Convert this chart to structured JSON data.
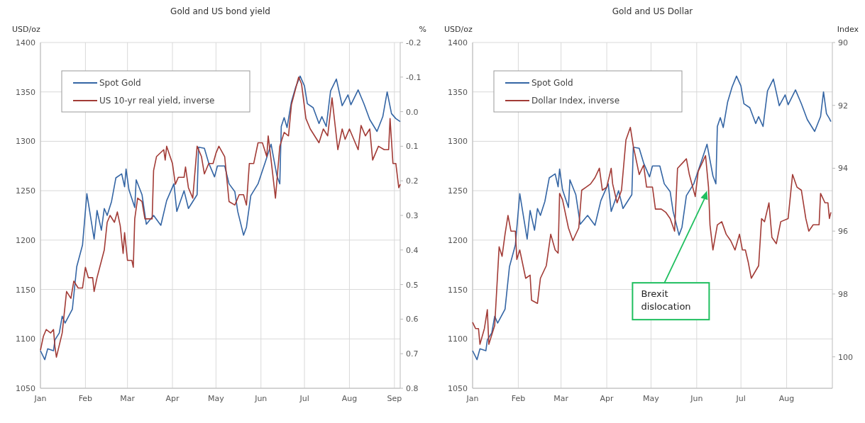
{
  "chart_data": [
    {
      "type": "line",
      "title": "Gold and US bond yield",
      "ylabel": "USD/oz",
      "y2label": "%",
      "legend": "top left",
      "grid": true,
      "xlim": [
        "--01-01",
        "--09-05"
      ],
      "xticks": [
        {
          "value": "--01-01",
          "label": "Jan"
        },
        {
          "value": "--02-01",
          "label": "Feb"
        },
        {
          "value": "--03-01",
          "label": "Mar"
        },
        {
          "value": "--04-01",
          "label": "Apr"
        },
        {
          "value": "--05-01",
          "label": "May"
        },
        {
          "value": "--06-01",
          "label": "Jun"
        },
        {
          "value": "--07-01",
          "label": "Jul"
        },
        {
          "value": "--08-01",
          "label": "Aug"
        },
        {
          "value": "--09-01",
          "label": "Sep"
        }
      ],
      "ylim": [
        1050,
        1400
      ],
      "yticks": [
        1050,
        1100,
        1150,
        1200,
        1250,
        1300,
        1350,
        1400
      ],
      "y2lim": [
        0.8,
        -0.2
      ],
      "y2ticks": [
        -0.2,
        -0.1,
        {
          "value": 0,
          "label": "0.0"
        },
        0.1,
        0.2,
        0.3,
        0.4,
        0.5,
        0.6,
        0.7,
        0.8
      ],
      "series": [
        {
          "name": "Spot Gold",
          "color": "#3465a4",
          "x": [
            "--01-01",
            "--01-04",
            "--01-06",
            "--01-10",
            "--01-11",
            "--01-14",
            "--01-16",
            "--01-18",
            "--01-23",
            "--01-26",
            "--01-30",
            "--02-02",
            "--02-07",
            "--02-09",
            "--02-12",
            "--02-14",
            "--02-16",
            "--02-19",
            "--02-22",
            "--02-26",
            "--02-28",
            "--02-29",
            "--03-02",
            "--03-06",
            "--03-07",
            "--03-11",
            "--03-14",
            "--03-19",
            "--03-24",
            "--03-28",
            "--04-02",
            "--04-04",
            "--04-09",
            "--04-12",
            "--04-18",
            "--04-19",
            "--04-23",
            "--04-26",
            "--04-30",
            "--05-02",
            "--05-07",
            "--05-10",
            "--05-14",
            "--05-16",
            "--05-20",
            "--05-22",
            "--05-25",
            "--05-30",
            "--06-04",
            "--06-08",
            "--06-12",
            "--06-14",
            "--06-15",
            "--06-17",
            "--06-19",
            "--06-22",
            "--06-25",
            "--06-28",
            "--07-01",
            "--07-03",
            "--07-07",
            "--07-11",
            "--07-13",
            "--07-16",
            "--07-19",
            "--07-23",
            "--07-27",
            "--07-31",
            "--08-02",
            "--08-07",
            "--08-11",
            "--08-15",
            "--08-20",
            "--08-24",
            "--08-27",
            "--08-30",
            "--09-02",
            "--09-05"
          ],
          "values": [
            1088,
            1079,
            1090,
            1088,
            1099,
            1106,
            1123,
            1116,
            1130,
            1173,
            1195,
            1247,
            1201,
            1230,
            1210,
            1232,
            1225,
            1239,
            1263,
            1267,
            1254,
            1272,
            1251,
            1233,
            1261,
            1246,
            1216,
            1225,
            1215,
            1240,
            1257,
            1229,
            1250,
            1232,
            1246,
            1294,
            1293,
            1278,
            1264,
            1275,
            1275,
            1257,
            1249,
            1229,
            1205,
            1213,
            1245,
            1257,
            1279,
            1297,
            1265,
            1257,
            1315,
            1324,
            1314,
            1340,
            1355,
            1366,
            1356,
            1338,
            1334,
            1318,
            1325,
            1315,
            1351,
            1363,
            1336,
            1347,
            1337,
            1352,
            1338,
            1322,
            1310,
            1325,
            1350,
            1328,
            1323,
            1320
          ]
        },
        {
          "name": "US 10-yr real yield, inverse",
          "color": "#a23b36",
          "axis": "y2",
          "x": [
            "--01-01",
            "--01-03",
            "--01-05",
            "--01-08",
            "--01-10",
            "--01-11",
            "--01-12",
            "--01-16",
            "--01-19",
            "--01-22",
            "--01-24",
            "--01-27",
            "--01-30",
            "--02-01",
            "--02-03",
            "--02-06",
            "--02-07",
            "--02-09",
            "--02-14",
            "--02-16",
            "--02-18",
            "--02-21",
            "--02-23",
            "--02-25",
            "--02-27",
            "--02-28",
            "--03-01",
            "--03-04",
            "--03-05",
            "--03-06",
            "--03-08",
            "--03-11",
            "--03-13",
            "--03-15",
            "--03-18",
            "--03-19",
            "--03-21",
            "--03-26",
            "--03-27",
            "--03-28",
            "--04-01",
            "--04-03",
            "--04-05",
            "--04-09",
            "--04-10",
            "--04-12",
            "--04-15",
            "--04-18",
            "--04-21",
            "--04-23",
            "--04-26",
            "--04-29",
            "--05-01",
            "--05-03",
            "--05-07",
            "--05-10",
            "--05-14",
            "--05-17",
            "--05-20",
            "--05-22",
            "--05-24",
            "--05-27",
            "--05-30",
            "--06-02",
            "--06-05",
            "--06-06",
            "--06-08",
            "--06-11",
            "--06-14",
            "--06-17",
            "--06-20",
            "--06-22",
            "--06-27",
            "--06-29",
            "--07-02",
            "--07-05",
            "--07-11",
            "--07-14",
            "--07-17",
            "--07-20",
            "--07-24",
            "--07-27",
            "--07-29",
            "--08-01",
            "--08-03",
            "--08-07",
            "--08-09",
            "--08-12",
            "--08-15",
            "--08-17",
            "--08-21",
            "--08-25",
            "--08-28",
            "--08-29",
            "--08-31",
            "--09-02",
            "--09-04",
            "--09-05"
          ],
          "values": [
            0.69,
            0.65,
            0.63,
            0.64,
            0.63,
            0.68,
            0.71,
            0.64,
            0.52,
            0.54,
            0.49,
            0.51,
            0.51,
            0.45,
            0.48,
            0.48,
            0.52,
            0.48,
            0.4,
            0.32,
            0.3,
            0.32,
            0.29,
            0.33,
            0.41,
            0.35,
            0.43,
            0.43,
            0.45,
            0.31,
            0.25,
            0.26,
            0.31,
            0.31,
            0.31,
            0.17,
            0.13,
            0.11,
            0.14,
            0.1,
            0.15,
            0.21,
            0.19,
            0.19,
            0.16,
            0.22,
            0.25,
            0.1,
            0.13,
            0.18,
            0.15,
            0.15,
            0.12,
            0.1,
            0.13,
            0.26,
            0.27,
            0.24,
            0.24,
            0.27,
            0.15,
            0.15,
            0.09,
            0.09,
            0.13,
            0.07,
            0.14,
            0.25,
            0.1,
            0.06,
            0.07,
            -0.02,
            -0.1,
            -0.08,
            0.02,
            0.05,
            0.09,
            0.05,
            0.07,
            -0.04,
            0.11,
            0.05,
            0.08,
            0.05,
            0.07,
            0.11,
            0.04,
            0.07,
            0.05,
            0.14,
            0.1,
            0.11,
            0.11,
            0.02,
            0.15,
            0.15,
            0.22,
            0.21
          ]
        }
      ]
    },
    {
      "type": "line",
      "title": "Gold and US Dollar",
      "ylabel": "USD/oz",
      "y2label": "Index",
      "legend": "top left",
      "grid": true,
      "xlim": [
        "--01-01",
        "--09-01"
      ],
      "xticks": [
        {
          "value": "--01-01",
          "label": "Jan"
        },
        {
          "value": "--02-01",
          "label": "Feb"
        },
        {
          "value": "--03-01",
          "label": "Mar"
        },
        {
          "value": "--04-01",
          "label": "Apr"
        },
        {
          "value": "--05-01",
          "label": "May"
        },
        {
          "value": "--06-01",
          "label": "Jun"
        },
        {
          "value": "--07-01",
          "label": "Jul"
        },
        {
          "value": "--08-01",
          "label": "Aug"
        }
      ],
      "ylim": [
        1050,
        1400
      ],
      "yticks": [
        1050,
        1100,
        1150,
        1200,
        1250,
        1300,
        1350,
        1400
      ],
      "y2lim": [
        101,
        90
      ],
      "y2ticks": [
        90,
        92,
        94,
        96,
        98,
        100
      ],
      "annotations": [
        {
          "text": "Brexit dislocation",
          "x": "--06-08",
          "y": 1250
        }
      ],
      "series": [
        {
          "name": "Spot Gold",
          "color": "#3465a4",
          "x": [
            "--01-01",
            "--01-04",
            "--01-06",
            "--01-10",
            "--01-11",
            "--01-14",
            "--01-16",
            "--01-18",
            "--01-23",
            "--01-26",
            "--01-30",
            "--02-02",
            "--02-07",
            "--02-09",
            "--02-12",
            "--02-14",
            "--02-16",
            "--02-19",
            "--02-22",
            "--02-26",
            "--02-28",
            "--02-29",
            "--03-02",
            "--03-06",
            "--03-07",
            "--03-11",
            "--03-14",
            "--03-19",
            "--03-24",
            "--03-28",
            "--04-02",
            "--04-04",
            "--04-09",
            "--04-12",
            "--04-18",
            "--04-19",
            "--04-23",
            "--04-26",
            "--04-30",
            "--05-02",
            "--05-07",
            "--05-10",
            "--05-14",
            "--05-16",
            "--05-20",
            "--05-22",
            "--05-25",
            "--05-30",
            "--06-04",
            "--06-08",
            "--06-12",
            "--06-14",
            "--06-15",
            "--06-17",
            "--06-19",
            "--06-22",
            "--06-25",
            "--06-28",
            "--07-01",
            "--07-03",
            "--07-07",
            "--07-11",
            "--07-13",
            "--07-16",
            "--07-19",
            "--07-23",
            "--07-27",
            "--07-31",
            "--08-02",
            "--08-07",
            "--08-11",
            "--08-15",
            "--08-20",
            "--08-24",
            "--08-26",
            "--08-28",
            "--08-30",
            "--08-31"
          ],
          "values": [
            1088,
            1079,
            1090,
            1088,
            1099,
            1106,
            1123,
            1116,
            1130,
            1173,
            1195,
            1247,
            1201,
            1230,
            1210,
            1232,
            1225,
            1239,
            1263,
            1267,
            1254,
            1272,
            1251,
            1233,
            1261,
            1246,
            1216,
            1225,
            1215,
            1240,
            1257,
            1229,
            1250,
            1232,
            1246,
            1294,
            1293,
            1278,
            1264,
            1275,
            1275,
            1257,
            1249,
            1229,
            1205,
            1213,
            1245,
            1257,
            1279,
            1297,
            1265,
            1257,
            1315,
            1324,
            1314,
            1340,
            1355,
            1366,
            1356,
            1338,
            1334,
            1318,
            1325,
            1315,
            1351,
            1363,
            1336,
            1347,
            1337,
            1352,
            1338,
            1322,
            1310,
            1325,
            1350,
            1328,
            1323,
            1320
          ]
        },
        {
          "name": "Dollar Index, inverse",
          "color": "#a23b36",
          "axis": "y2",
          "x": [
            "--01-01",
            "--01-03",
            "--01-05",
            "--01-06",
            "--01-09",
            "--01-11",
            "--01-12",
            "--01-16",
            "--01-19",
            "--01-21",
            "--01-23",
            "--01-25",
            "--01-27",
            "--01-30",
            "--01-31",
            "--02-02",
            "--02-06",
            "--02-09",
            "--02-10",
            "--02-14",
            "--02-16",
            "--02-20",
            "--02-23",
            "--02-26",
            "--02-28",
            "--02-29",
            "--03-02",
            "--03-06",
            "--03-09",
            "--03-13",
            "--03-15",
            "--03-18",
            "--03-21",
            "--03-24",
            "--03-27",
            "--03-29",
            "--04-01",
            "--04-04",
            "--04-05",
            "--04-08",
            "--04-11",
            "--04-14",
            "--04-17",
            "--04-19",
            "--04-23",
            "--04-26",
            "--04-28",
            "--05-02",
            "--05-04",
            "--05-08",
            "--05-11",
            "--05-14",
            "--05-17",
            "--05-19",
            "--05-23",
            "--05-25",
            "--05-27",
            "--05-31",
            "--06-02",
            "--06-05",
            "--06-07",
            "--06-09",
            "--06-10",
            "--06-12",
            "--06-15",
            "--06-18",
            "--06-21",
            "--06-24",
            "--06-27",
            "--06-30",
            "--07-02",
            "--07-04",
            "--07-06",
            "--07-08",
            "--07-13",
            "--07-15",
            "--07-17",
            "--07-20",
            "--07-22",
            "--07-25",
            "--07-28",
            "--08-02",
            "--08-05",
            "--08-08",
            "--08-11",
            "--08-14",
            "--08-16",
            "--08-19",
            "--08-23",
            "--08-24",
            "--08-27",
            "--08-29",
            "--08-30",
            "--08-31"
          ],
          "values": [
            98.9,
            99.1,
            99.1,
            99.6,
            99.1,
            98.5,
            99.6,
            99.0,
            96.5,
            96.8,
            96.1,
            95.5,
            96.0,
            96.0,
            96.9,
            96.6,
            97.5,
            97.4,
            98.2,
            98.3,
            97.5,
            97.1,
            96.1,
            96.6,
            96.7,
            94.8,
            95.0,
            95.9,
            96.3,
            95.9,
            94.7,
            94.6,
            94.5,
            94.3,
            94.0,
            94.7,
            94.6,
            94.0,
            94.5,
            95.1,
            94.7,
            93.1,
            92.7,
            93.3,
            94.2,
            93.9,
            94.6,
            94.6,
            95.3,
            95.3,
            95.4,
            95.6,
            96.0,
            94.0,
            93.8,
            93.7,
            94.2,
            94.9,
            94.1,
            93.8,
            93.6,
            94.6,
            95.8,
            96.6,
            95.8,
            95.7,
            96.1,
            96.3,
            96.6,
            96.1,
            96.6,
            96.6,
            97.0,
            97.5,
            97.1,
            95.6,
            95.7,
            95.1,
            96.2,
            96.4,
            95.7,
            95.6,
            94.2,
            94.6,
            94.7,
            95.6,
            96.0,
            95.8,
            95.8,
            94.8,
            95.1,
            95.1,
            95.6,
            95.4
          ]
        }
      ]
    }
  ]
}
